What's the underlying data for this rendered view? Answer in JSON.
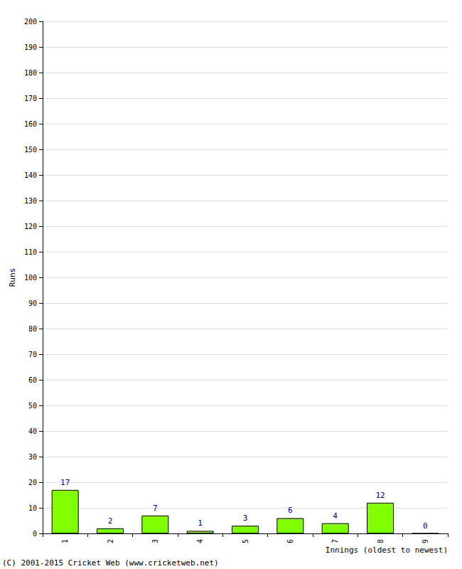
{
  "chart_data": {
    "type": "bar",
    "x_label": "Innings (oldest to newest)",
    "y_label": "Runs",
    "annotation": "(C) 2001-2015 Cricket Web (www.cricketweb.net)",
    "categories": [
      "1",
      "2",
      "3",
      "4",
      "5",
      "6",
      "7",
      "8",
      "9"
    ],
    "values": [
      17,
      2,
      7,
      1,
      3,
      6,
      4,
      12,
      0
    ],
    "color": "#80ff00",
    "ylim": [
      0,
      200
    ],
    "yticks": [
      0,
      10,
      20,
      30,
      40,
      50,
      60,
      70,
      80,
      90,
      100,
      110,
      120,
      130,
      140,
      150,
      160,
      170,
      180,
      190,
      200
    ],
    "grid": true,
    "data_labels": true
  }
}
